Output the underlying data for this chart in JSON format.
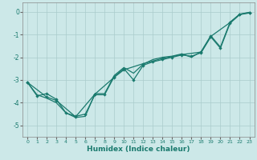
{
  "xlabel": "Humidex (Indice chaleur)",
  "ylabel": "",
  "background_color": "#cce8e8",
  "grid_color": "#aacccc",
  "line_color": "#1a7a6e",
  "xlim": [
    -0.5,
    23.5
  ],
  "ylim": [
    -5.5,
    0.4
  ],
  "xticks": [
    0,
    1,
    2,
    3,
    4,
    5,
    6,
    7,
    8,
    9,
    10,
    11,
    12,
    13,
    14,
    15,
    16,
    17,
    18,
    19,
    20,
    21,
    22,
    23
  ],
  "yticks": [
    0,
    -1,
    -2,
    -3,
    -4,
    -5
  ],
  "series1": [
    [
      0,
      -3.1
    ],
    [
      1,
      -3.7
    ],
    [
      2,
      -3.6
    ],
    [
      3,
      -3.85
    ],
    [
      4,
      -4.45
    ],
    [
      5,
      -4.6
    ],
    [
      6,
      -4.5
    ],
    [
      7,
      -3.65
    ],
    [
      8,
      -3.65
    ],
    [
      9,
      -2.85
    ],
    [
      10,
      -2.5
    ],
    [
      11,
      -3.0
    ],
    [
      12,
      -2.35
    ],
    [
      13,
      -2.2
    ],
    [
      14,
      -2.1
    ],
    [
      15,
      -2.0
    ],
    [
      16,
      -1.9
    ],
    [
      17,
      -1.95
    ],
    [
      18,
      -1.8
    ],
    [
      19,
      -1.1
    ],
    [
      20,
      -1.6
    ],
    [
      21,
      -0.5
    ],
    [
      22,
      -0.12
    ],
    [
      23,
      -0.05
    ]
  ],
  "series2": [
    [
      0,
      -3.1
    ],
    [
      1,
      -3.65
    ],
    [
      2,
      -3.8
    ],
    [
      3,
      -4.0
    ],
    [
      4,
      -4.45
    ],
    [
      5,
      -4.65
    ],
    [
      6,
      -4.6
    ],
    [
      7,
      -3.6
    ],
    [
      8,
      -3.6
    ],
    [
      9,
      -2.8
    ],
    [
      10,
      -2.45
    ],
    [
      11,
      -2.7
    ],
    [
      12,
      -2.3
    ],
    [
      13,
      -2.1
    ],
    [
      14,
      -2.0
    ],
    [
      15,
      -1.95
    ],
    [
      16,
      -1.85
    ],
    [
      17,
      -2.0
    ],
    [
      18,
      -1.75
    ],
    [
      19,
      -1.05
    ],
    [
      20,
      -1.55
    ],
    [
      21,
      -0.45
    ],
    [
      22,
      -0.1
    ],
    [
      23,
      -0.02
    ]
  ],
  "series3": [
    [
      0,
      -3.1
    ],
    [
      2,
      -3.75
    ],
    [
      3,
      -3.9
    ],
    [
      5,
      -4.62
    ],
    [
      7,
      -3.62
    ],
    [
      9,
      -2.88
    ],
    [
      10,
      -2.55
    ],
    [
      12,
      -2.28
    ],
    [
      14,
      -2.05
    ],
    [
      16,
      -1.88
    ],
    [
      18,
      -1.77
    ],
    [
      19,
      -1.08
    ],
    [
      21,
      -0.47
    ],
    [
      22,
      -0.11
    ],
    [
      23,
      -0.03
    ]
  ]
}
